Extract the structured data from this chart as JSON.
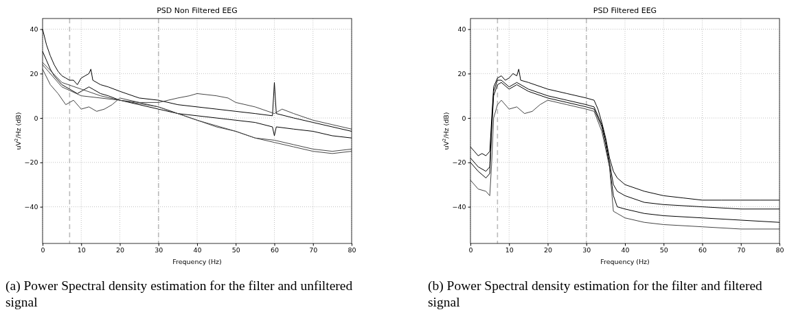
{
  "chart_data": [
    {
      "type": "line",
      "title": "PSD Non Filtered EEG",
      "xlabel": "Frequency (Hz)",
      "ylabel": "uV$^{2}$/Hz (dB)",
      "xlim": [
        0,
        80
      ],
      "ylim": [
        -56.5,
        44.8
      ],
      "xticks": [
        0,
        10,
        20,
        30,
        40,
        50,
        60,
        70,
        80
      ],
      "yticks": [
        -40,
        -20,
        0,
        20,
        40
      ],
      "grid": true,
      "marker": "none",
      "line_style": "solid",
      "ref_lines": [
        {
          "axis": "x",
          "value": 7,
          "color": "#bbbbbb",
          "line_style": "dashed"
        },
        {
          "axis": "x",
          "value": 30,
          "color": "#bbbbbb",
          "line_style": "dashed"
        }
      ],
      "series": [
        {
          "color": "#000000",
          "x": [
            0,
            1,
            2,
            3,
            4,
            5,
            6,
            7,
            8,
            9,
            10,
            11,
            12,
            12.5,
            13,
            15,
            17,
            20,
            25,
            30,
            35,
            40,
            45,
            50,
            55,
            59.5,
            60,
            60.5,
            65,
            70,
            75,
            80
          ],
          "values": [
            40,
            33,
            28,
            24,
            21,
            19,
            18,
            17,
            17,
            15,
            18,
            19,
            20,
            22,
            17,
            15,
            14,
            12,
            9,
            8,
            6,
            5,
            4,
            3,
            2,
            1,
            16,
            2,
            0,
            -2,
            -4,
            -6
          ]
        },
        {
          "color": "#000000",
          "x": [
            0,
            1,
            2,
            3,
            4,
            5,
            6,
            7,
            8,
            9,
            10,
            11,
            12,
            13,
            15,
            17,
            20,
            25,
            30,
            35,
            40,
            45,
            50,
            55,
            59.5,
            60,
            60.5,
            65,
            70,
            75,
            80
          ],
          "values": [
            30,
            26,
            22,
            19,
            17,
            15,
            14,
            13,
            12,
            11,
            12,
            13,
            14,
            13,
            11,
            10,
            8,
            6,
            4,
            2,
            1,
            0,
            -1,
            -2,
            -4,
            -8,
            -4,
            -5,
            -6,
            -8,
            -9
          ]
        },
        {
          "color": "#444444",
          "x": [
            0,
            2,
            4,
            6,
            7,
            8,
            10,
            12,
            14,
            16,
            18,
            20,
            25,
            30,
            35,
            40,
            45,
            50,
            55,
            60,
            65,
            70,
            75,
            80
          ],
          "values": [
            22,
            15,
            11,
            6,
            7,
            8,
            4,
            5,
            3,
            4,
            6,
            9,
            7,
            5,
            2,
            -1,
            -4,
            -6,
            -9,
            -10,
            -12,
            -14,
            -15,
            -14
          ]
        },
        {
          "color": "#444444",
          "x": [
            0,
            5,
            10,
            15,
            20,
            25,
            30,
            35,
            38,
            40,
            45,
            48,
            50,
            55,
            60,
            62,
            65,
            70,
            75,
            80
          ],
          "values": [
            25,
            16,
            13,
            10,
            8,
            7,
            7,
            9,
            10,
            11,
            10,
            9,
            7,
            5,
            2,
            4,
            2,
            -1,
            -3,
            -5
          ]
        },
        {
          "color": "#444444",
          "x": [
            0,
            5,
            10,
            20,
            30,
            40,
            50,
            55,
            60,
            65,
            70,
            75,
            80
          ],
          "values": [
            24,
            14,
            10,
            8,
            5,
            -1,
            -6,
            -9,
            -11,
            -13,
            -15,
            -16,
            -15
          ]
        }
      ],
      "annotations": [
        "(a) Power Spectral density estimation for the filter and unfiltered signal"
      ]
    },
    {
      "type": "line",
      "title": "PSD Filtered EEG",
      "xlabel": "Frequency (Hz)",
      "ylabel": "uV$^{2}$/Hz (dB)",
      "xlim": [
        0,
        80
      ],
      "ylim": [
        -56.5,
        44.8
      ],
      "xticks": [
        0,
        10,
        20,
        30,
        40,
        50,
        60,
        70,
        80
      ],
      "yticks": [
        -40,
        -20,
        0,
        20,
        40
      ],
      "grid": true,
      "marker": "none",
      "line_style": "solid",
      "ref_lines": [
        {
          "axis": "x",
          "value": 7,
          "color": "#bbbbbb",
          "line_style": "dashed"
        },
        {
          "axis": "x",
          "value": 30,
          "color": "#bbbbbb",
          "line_style": "dashed"
        }
      ],
      "series": [
        {
          "color": "#000000",
          "x": [
            0,
            1,
            2,
            3,
            4,
            5,
            5.5,
            6,
            7,
            8,
            9,
            10,
            11,
            12,
            12.5,
            13,
            15,
            20,
            25,
            30,
            32,
            33,
            34,
            35,
            36,
            37,
            38,
            40,
            45,
            50,
            55,
            60,
            65,
            70,
            75,
            80
          ],
          "values": [
            -13,
            -15,
            -17,
            -16,
            -17,
            -15,
            0,
            14,
            18,
            19,
            17,
            18,
            20,
            19,
            22,
            17,
            16,
            13,
            11,
            9,
            8,
            4,
            -2,
            -9,
            -18,
            -24,
            -27,
            -30,
            -33,
            -35,
            -36,
            -37,
            -37,
            -37,
            -37,
            -37
          ]
        },
        {
          "color": "#000000",
          "x": [
            0,
            2,
            4,
            5,
            5.5,
            6,
            7,
            8,
            10,
            12,
            15,
            20,
            25,
            30,
            32,
            34,
            35,
            36,
            37,
            38,
            40,
            45,
            50,
            60,
            70,
            80
          ],
          "values": [
            -20,
            -24,
            -27,
            -25,
            -5,
            10,
            15,
            16,
            13,
            15,
            12,
            9,
            7,
            5,
            4,
            -4,
            -12,
            -22,
            -35,
            -40,
            -41,
            -43,
            -44,
            -45,
            -46,
            -47
          ]
        },
        {
          "color": "#000000",
          "x": [
            0,
            2,
            4,
            5,
            5.5,
            6,
            7,
            8,
            10,
            12,
            15,
            20,
            25,
            30,
            32,
            34,
            35,
            36,
            37,
            38,
            40,
            45,
            50,
            60,
            70,
            80
          ],
          "values": [
            -18,
            -22,
            -24,
            -22,
            -3,
            12,
            17,
            17,
            14,
            16,
            13,
            10,
            8,
            6,
            5,
            -3,
            -10,
            -20,
            -30,
            -33,
            -35,
            -38,
            -39,
            -40,
            -41,
            -41
          ]
        },
        {
          "color": "#444444",
          "x": [
            0,
            2,
            4,
            5,
            5.5,
            6,
            7,
            8,
            10,
            12,
            14,
            16,
            18,
            20,
            25,
            30,
            32,
            34,
            36,
            37,
            38,
            40,
            45,
            50,
            60,
            70,
            80
          ],
          "values": [
            -28,
            -32,
            -33,
            -35,
            -20,
            0,
            6,
            8,
            4,
            5,
            2,
            3,
            6,
            8,
            6,
            4,
            3,
            -6,
            -22,
            -42,
            -43,
            -45,
            -47,
            -48,
            -49,
            -50,
            -50
          ]
        }
      ],
      "annotations": [
        "(b) Power Spectral density estimation for the filter and filtered signal"
      ]
    }
  ]
}
